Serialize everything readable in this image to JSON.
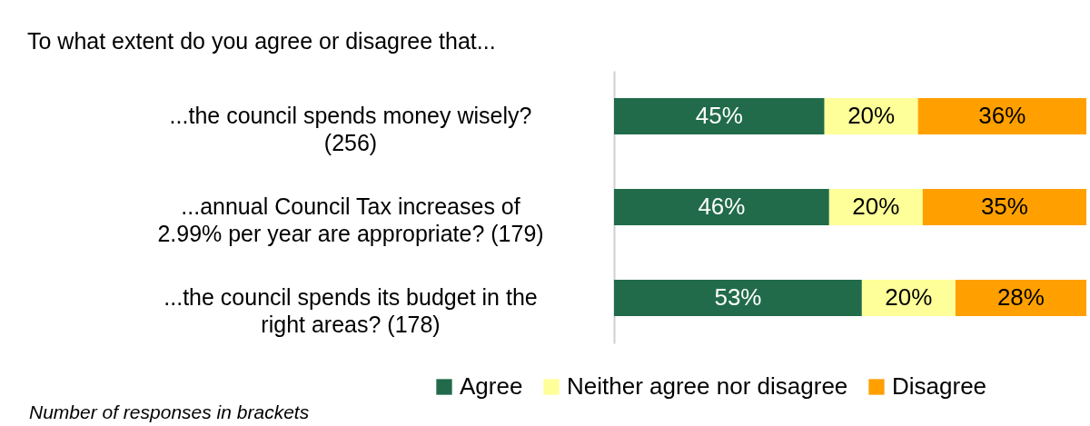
{
  "chart_data": {
    "type": "bar",
    "orientation": "horizontal",
    "stacked": true,
    "title": "To what extent do you agree or disagree that...",
    "categories": [
      "...the council spends money wisely? (256)",
      "...annual Council Tax increases of 2.99% per year are appropriate? (179)",
      "...the council spends its budget in the right areas? (178)"
    ],
    "series": [
      {
        "name": "Agree",
        "color": "#216b4a",
        "values": [
          45,
          46,
          53
        ],
        "value_labels": [
          "45%",
          "46%",
          "53%"
        ]
      },
      {
        "name": "Neither agree nor disagree",
        "color": "#ffff99",
        "values": [
          20,
          20,
          20
        ],
        "value_labels": [
          "20%",
          "20%",
          "20%"
        ]
      },
      {
        "name": "Disagree",
        "color": "#ffa000",
        "values": [
          36,
          35,
          28
        ],
        "value_labels": [
          "36%",
          "35%",
          "28%"
        ]
      }
    ],
    "legend": "bottom",
    "annotations": [
      "Number of responses in brackets"
    ]
  }
}
